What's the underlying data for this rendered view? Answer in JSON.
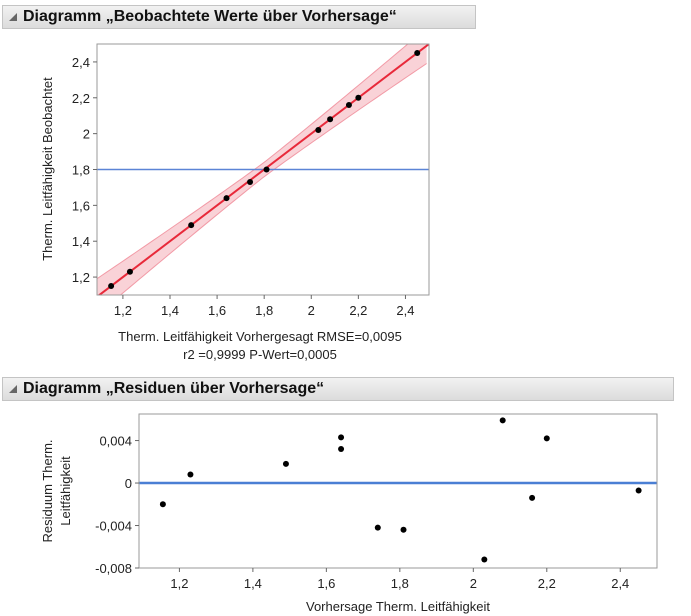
{
  "panels": {
    "top_title": "Diagramm „Beobachtete Werte über Vorhersage“",
    "bottom_title": "Diagramm „Residuen über Vorhersage“"
  },
  "chart_data": [
    {
      "type": "scatter",
      "title": "Diagramm „Beobachtete Werte über Vorhersage“",
      "xlabel": "Therm. Leitfähigkeit Vorhergesagt RMSE=0,0095",
      "xlabel_line2": "r2 =0,9999 P-Wert=0,0005",
      "ylabel": "Therm. Leitfähigkeit Beobachtet",
      "xlim": [
        1.09,
        2.5
      ],
      "ylim": [
        1.1,
        2.5
      ],
      "x_ticks": [
        1.2,
        1.4,
        1.6,
        1.8,
        2.0,
        2.2,
        2.4
      ],
      "x_tick_labels": [
        "1,2",
        "1,4",
        "1,6",
        "1,8",
        "2",
        "2,2",
        "2,4"
      ],
      "y_ticks": [
        1.2,
        1.4,
        1.6,
        1.8,
        2.0,
        2.2,
        2.4
      ],
      "y_tick_labels": [
        "1,2",
        "1,4",
        "1,6",
        "1,8",
        "2",
        "2,2",
        "2,4"
      ],
      "mean_line": 1.8,
      "fit_line": {
        "from": [
          1.09,
          1.09
        ],
        "to": [
          2.5,
          2.5
        ]
      },
      "confidence_band": "shaded",
      "points": [
        {
          "x": 1.15,
          "y": 1.15
        },
        {
          "x": 1.23,
          "y": 1.23
        },
        {
          "x": 1.49,
          "y": 1.49
        },
        {
          "x": 1.64,
          "y": 1.64
        },
        {
          "x": 1.74,
          "y": 1.73
        },
        {
          "x": 1.81,
          "y": 1.8
        },
        {
          "x": 2.03,
          "y": 2.02
        },
        {
          "x": 2.08,
          "y": 2.08
        },
        {
          "x": 2.16,
          "y": 2.16
        },
        {
          "x": 2.2,
          "y": 2.2
        },
        {
          "x": 2.45,
          "y": 2.45
        }
      ],
      "colors": {
        "points": "#000000",
        "fit": "#e8293a",
        "band": "#f9d2d7",
        "band_edge": "#f29aa6",
        "mean": "#5b84d6"
      }
    },
    {
      "type": "scatter",
      "title": "Diagramm „Residuen über Vorhersage“",
      "xlabel": "Vorhersage Therm. Leitfähigkeit",
      "ylabel": "Residuum Therm.",
      "ylabel_line2": "Leitfähigkeit",
      "xlim": [
        1.09,
        2.5
      ],
      "ylim": [
        -0.008,
        0.0065
      ],
      "x_ticks": [
        1.2,
        1.4,
        1.6,
        1.8,
        2.0,
        2.2,
        2.4
      ],
      "x_tick_labels": [
        "1,2",
        "1,4",
        "1,6",
        "1,8",
        "2",
        "2,2",
        "2,4"
      ],
      "y_ticks": [
        -0.008,
        -0.004,
        0,
        0.004
      ],
      "y_tick_labels": [
        "-0,008",
        "-0,004",
        "0",
        "0,004"
      ],
      "zero_line": 0,
      "points": [
        {
          "x": 1.155,
          "y": -0.002
        },
        {
          "x": 1.23,
          "y": 0.0008
        },
        {
          "x": 1.49,
          "y": 0.0018
        },
        {
          "x": 1.64,
          "y": 0.0043
        },
        {
          "x": 1.64,
          "y": 0.0032
        },
        {
          "x": 1.74,
          "y": -0.0042
        },
        {
          "x": 1.81,
          "y": -0.0044
        },
        {
          "x": 2.03,
          "y": -0.0072
        },
        {
          "x": 2.08,
          "y": 0.0059
        },
        {
          "x": 2.16,
          "y": -0.0014
        },
        {
          "x": 2.2,
          "y": 0.0042
        },
        {
          "x": 2.45,
          "y": -0.0007
        }
      ],
      "colors": {
        "points": "#000000",
        "zero": "#4a7fd4"
      }
    }
  ]
}
